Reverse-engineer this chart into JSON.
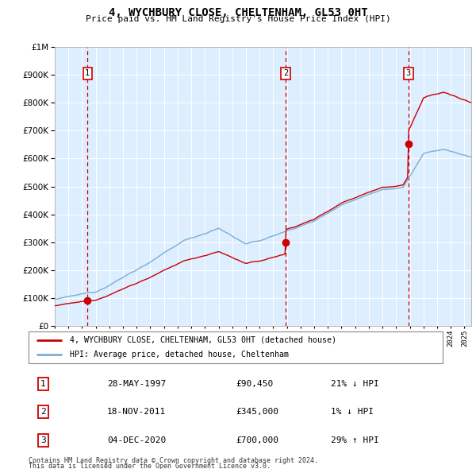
{
  "title": "4, WYCHBURY CLOSE, CHELTENHAM, GL53 0HT",
  "subtitle": "Price paid vs. HM Land Registry's House Price Index (HPI)",
  "legend_line1": "4, WYCHBURY CLOSE, CHELTENHAM, GL53 0HT (detached house)",
  "legend_line2": "HPI: Average price, detached house, Cheltenham",
  "transactions": [
    {
      "num": 1,
      "date": "28-MAY-1997",
      "price": 90450,
      "pct": "21%",
      "dir": "↓",
      "year_x": 1997.4
    },
    {
      "num": 2,
      "date": "18-NOV-2011",
      "price": 345000,
      "pct": "1%",
      "dir": "↓",
      "year_x": 2011.9
    },
    {
      "num": 3,
      "date": "04-DEC-2020",
      "price": 700000,
      "pct": "29%",
      "dir": "↑",
      "year_x": 2020.9
    }
  ],
  "footnote1": "Contains HM Land Registry data © Crown copyright and database right 2024.",
  "footnote2": "This data is licensed under the Open Government Licence v3.0.",
  "hpi_color": "#7aaed4",
  "price_color": "#cc0000",
  "dashed_color": "#cc0000",
  "bg_color": "#ddeeff",
  "ylim": [
    0,
    1000000
  ],
  "xlim_start": 1995,
  "xlim_end": 2025.5
}
